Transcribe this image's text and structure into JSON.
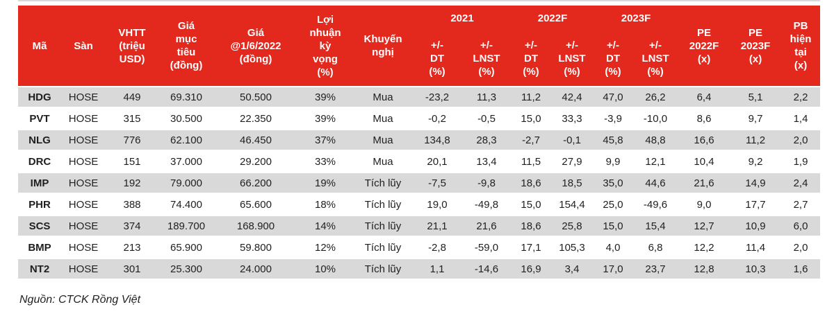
{
  "colors": {
    "header_bg": "#E3281E",
    "header_text": "#FFFFFF",
    "row_stripe": "#D9D9D9",
    "body_text": "#1F1F1F"
  },
  "table": {
    "headers": {
      "ma": "Mã",
      "san": "Sàn",
      "vhtt": "VHTT\n(triệu\nUSD)",
      "gia_muc_tieu": "Giá\nmục\ntiêu\n(đồng)",
      "gia_hien_tai": "Giá\n@1/6/2022\n(đồng)",
      "loi_nhuan_ky_vong": "Lợi\nnhuận\nkỳ\nvọng\n(%)",
      "khuyen_nghi": "Khuyến\nnghị",
      "pe_2022f": "PE\n2022F\n(x)",
      "pe_2023f": "PE\n2023F\n(x)",
      "pb_hien_tai": "PB\nhiện\ntại\n(x)"
    },
    "groups": {
      "y2021": "2021",
      "y2022f": "2022F",
      "y2023f": "2023F"
    },
    "subheaders": {
      "dt": "+/-\nDT\n(%)",
      "lnst": "+/-\nLNST\n(%)"
    },
    "rows": [
      [
        "HDG",
        "HOSE",
        "449",
        "69.310",
        "50.500",
        "39%",
        "Mua",
        "-23,2",
        "11,3",
        "11,2",
        "42,4",
        "47,0",
        "26,2",
        "6,4",
        "5,1",
        "2,2"
      ],
      [
        "PVT",
        "HOSE",
        "315",
        "30.500",
        "22.350",
        "39%",
        "Mua",
        "-0,2",
        "-0,5",
        "15,0",
        "33,3",
        "-3,9",
        "-10,0",
        "8,6",
        "9,7",
        "1,4"
      ],
      [
        "NLG",
        "HOSE",
        "776",
        "62.100",
        "46.450",
        "37%",
        "Mua",
        "134,8",
        "28,3",
        "-2,7",
        "-0,1",
        "45,8",
        "48,8",
        "16,6",
        "11,2",
        "2,0"
      ],
      [
        "DRC",
        "HOSE",
        "151",
        "37.000",
        "29.200",
        "33%",
        "Mua",
        "20,1",
        "13,4",
        "11,5",
        "27,9",
        "9,9",
        "12,1",
        "10,4",
        "9,2",
        "1,9"
      ],
      [
        "IMP",
        "HOSE",
        "192",
        "79.000",
        "66.200",
        "19%",
        "Tích lũy",
        "-7,5",
        "-9,8",
        "18,6",
        "18,5",
        "35,0",
        "44,6",
        "21,6",
        "14,9",
        "2,4"
      ],
      [
        "PHR",
        "HOSE",
        "388",
        "74.400",
        "65.600",
        "18%",
        "Tích lũy",
        "19,0",
        "-49,8",
        "15,0",
        "154,4",
        "25,0",
        "-49,6",
        "9,0",
        "17,7",
        "2,7"
      ],
      [
        "SCS",
        "HOSE",
        "374",
        "189.700",
        "168.900",
        "14%",
        "Tích lũy",
        "21,1",
        "21,6",
        "18,6",
        "25,8",
        "15,0",
        "15,4",
        "12,7",
        "10,9",
        "6,0"
      ],
      [
        "BMP",
        "HOSE",
        "213",
        "65.900",
        "59.800",
        "12%",
        "Tích lũy",
        "-2,8",
        "-59,0",
        "17,1",
        "105,3",
        "4,0",
        "6,8",
        "12,2",
        "11,4",
        "2,0"
      ],
      [
        "NT2",
        "HOSE",
        "301",
        "25.300",
        "24.000",
        "10%",
        "Tích lũy",
        "1,1",
        "-14,6",
        "16,9",
        "3,4",
        "17,0",
        "23,7",
        "12,8",
        "10,3",
        "1,6"
      ]
    ]
  },
  "footer": {
    "source_note": "Nguồn: CTCK Rồng Việt"
  }
}
